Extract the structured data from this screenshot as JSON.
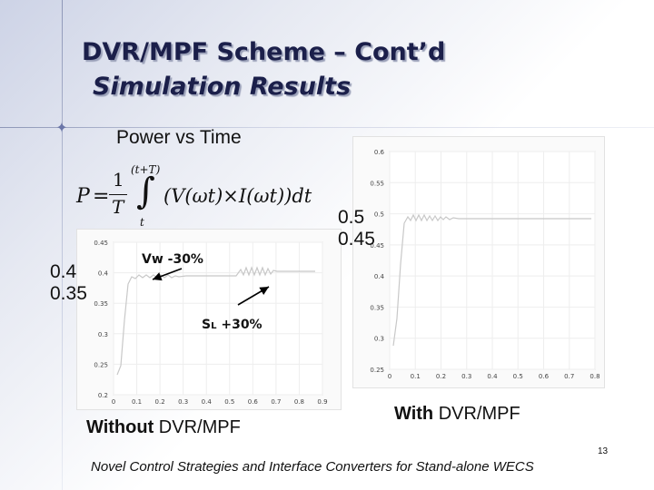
{
  "slide": {
    "title_line1": "DVR/MPF Scheme – Cont’d",
    "title_line2": "Simulation Results",
    "subheading": "Power vs Time",
    "footer": "Novel Control Strategies and Interface Converters for Stand-alone WECS",
    "page_number": "13"
  },
  "formula": {
    "lhs": "P",
    "frac_num": "1",
    "frac_den": "T",
    "upper_limit": "(t+T)",
    "lower_limit": "t",
    "integrand": "(V(ωt)×I(ωt))dt"
  },
  "left_plot": {
    "caption_bold": "Without",
    "caption_rest": " DVR/MPF",
    "callout_top": "0.4",
    "callout_bottom": "0.35",
    "annotation_vw": "Vw -30%",
    "annotation_sl_main": "S",
    "annotation_sl_sub": "L",
    "annotation_sl_rest": " +30%",
    "y_ticks": [
      "0.45",
      "0.4",
      "0.35",
      "0.3",
      "0.25",
      "0.2"
    ],
    "x_ticks": [
      "0",
      "0.1",
      "0.2",
      "0.3",
      "0.4",
      "0.5",
      "0.6",
      "0.7",
      "0.8",
      "0.9"
    ]
  },
  "right_plot": {
    "caption_bold": "With",
    "caption_rest": " DVR/MPF",
    "callout_top": "0.5",
    "callout_bottom": "0.45",
    "y_ticks": [
      "0.6",
      "0.55",
      "0.5",
      "0.45",
      "0.4",
      "0.35",
      "0.3",
      "0.25"
    ],
    "x_ticks": [
      "0",
      "0.1",
      "0.2",
      "0.3",
      "0.4",
      "0.5",
      "0.6",
      "0.7",
      "0.8"
    ]
  },
  "colors": {
    "title": "#1b1f4a",
    "trace": "#c8c8c8",
    "arrow": "#000000"
  }
}
